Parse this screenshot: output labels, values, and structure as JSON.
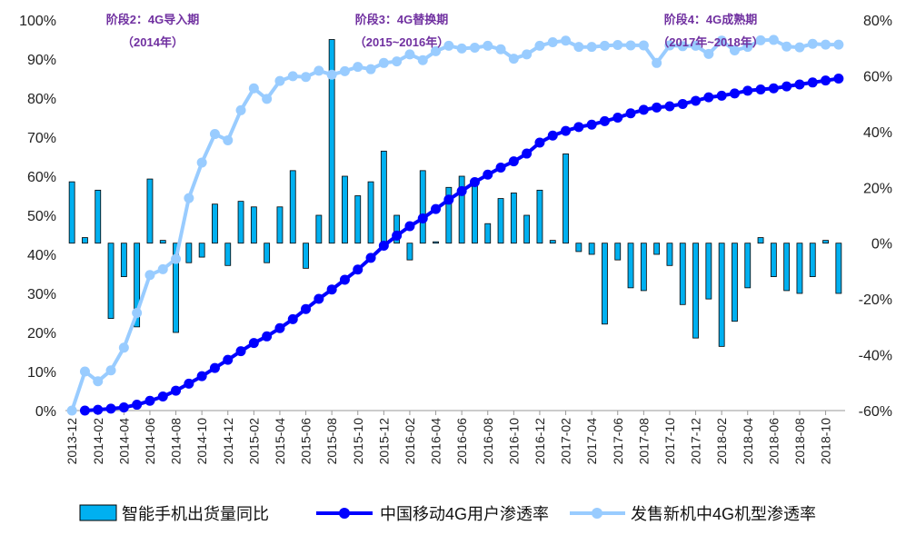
{
  "chart_data": {
    "type": "bar+line",
    "categories": [
      "2013-12",
      "2014-01",
      "2014-02",
      "2014-03",
      "2014-04",
      "2014-05",
      "2014-06",
      "2014-07",
      "2014-08",
      "2014-09",
      "2014-10",
      "2014-11",
      "2014-12",
      "2015-01",
      "2015-02",
      "2015-03",
      "2015-04",
      "2015-05",
      "2015-06",
      "2015-07",
      "2015-08",
      "2015-09",
      "2015-10",
      "2015-11",
      "2015-12",
      "2016-01",
      "2016-02",
      "2016-03",
      "2016-04",
      "2016-05",
      "2016-06",
      "2016-07",
      "2016-08",
      "2016-09",
      "2016-10",
      "2016-11",
      "2016-12",
      "2017-01",
      "2017-02",
      "2017-03",
      "2017-04",
      "2017-05",
      "2017-06",
      "2017-07",
      "2017-08",
      "2017-09",
      "2017-10",
      "2017-11",
      "2017-12",
      "2018-01",
      "2018-02",
      "2018-03",
      "2018-04",
      "2018-05",
      "2018-06",
      "2018-07",
      "2018-08",
      "2018-09",
      "2018-10",
      "2018-11"
    ],
    "x_tick_labels": [
      "2013-12",
      "2014-02",
      "2014-04",
      "2014-06",
      "2014-08",
      "2014-10",
      "2014-12",
      "2015-02",
      "2015-04",
      "2015-06",
      "2015-08",
      "2015-10",
      "2015-12",
      "2016-02",
      "2016-04",
      "2016-06",
      "2016-08",
      "2016-10",
      "2016-12",
      "2017-02",
      "2017-04",
      "2017-06",
      "2017-08",
      "2017-10",
      "2017-12",
      "2018-02",
      "2018-04",
      "2018-06",
      "2018-08",
      "2018-10"
    ],
    "y_left": {
      "ticks": [
        "0%",
        "10%",
        "20%",
        "30%",
        "40%",
        "50%",
        "60%",
        "70%",
        "80%",
        "90%",
        "100%"
      ],
      "ylim": [
        0,
        100
      ]
    },
    "y_right": {
      "ticks": [
        "-60%",
        "-40%",
        "-20%",
        "0%",
        "20%",
        "40%",
        "60%",
        "80%"
      ],
      "ylim": [
        -60,
        80
      ]
    },
    "series": [
      {
        "name": "智能手机出货量同比",
        "kind": "bar",
        "axis": "right",
        "color": "#00B0F0",
        "values": [
          22,
          2,
          19,
          -27,
          -12,
          -30,
          23,
          1,
          -32,
          -7,
          -5,
          14,
          -8,
          15,
          13,
          -7,
          13,
          26,
          -9,
          10,
          73,
          24,
          17,
          22,
          33,
          10,
          -6,
          26,
          0.5,
          20,
          24,
          21,
          7,
          16,
          18,
          10,
          19,
          1,
          32,
          -3,
          -4,
          -29,
          -6,
          -16,
          -17,
          -4,
          -8,
          -22,
          -34,
          -20,
          -37,
          -28,
          -16,
          2,
          -12,
          -17,
          -18,
          -12,
          1,
          -18
        ]
      },
      {
        "name": "中国移动4G用户渗透率",
        "kind": "line",
        "axis": "left",
        "color": "#0000FF",
        "values": [
          null,
          0,
          0.2,
          0.5,
          0.8,
          1.5,
          2.5,
          3.6,
          5.1,
          6.9,
          8.8,
          10.9,
          13.0,
          15.2,
          17.3,
          19.0,
          21.1,
          23.4,
          26.0,
          28.6,
          31.0,
          33.5,
          36.1,
          39.1,
          42.2,
          44.8,
          47.2,
          49.2,
          51.6,
          54.0,
          56.2,
          58.5,
          60.4,
          62.2,
          63.8,
          65.8,
          68.6,
          70.4,
          71.6,
          72.6,
          73.2,
          74.1,
          75.0,
          76.1,
          77.0,
          77.6,
          77.9,
          78.5,
          79.3,
          80.2,
          80.6,
          81.2,
          81.9,
          82.2,
          82.5,
          83.0,
          83.5,
          84.0,
          84.5,
          85.0
        ]
      },
      {
        "name": "发售新机中4G机型渗透率",
        "kind": "line",
        "axis": "left",
        "color": "#99CCFF",
        "values": [
          0,
          10,
          7.5,
          10.3,
          16.1,
          25,
          34.7,
          36.2,
          38.8,
          54.4,
          63.5,
          70.8,
          69.2,
          76.9,
          82.5,
          79.8,
          84.4,
          85.6,
          85.4,
          87.0,
          86.0,
          86.9,
          88.0,
          87.4,
          89.0,
          89.4,
          91.2,
          89.7,
          92.0,
          93.4,
          92.7,
          92.9,
          93.4,
          92.5,
          90.1,
          91.2,
          93.4,
          94.3,
          94.7,
          93.1,
          93.1,
          93.4,
          93.6,
          93.5,
          93.5,
          89.0,
          93.5,
          93.3,
          93.4,
          91.3,
          94.7,
          92.2,
          93.1,
          94.8,
          94.9,
          93.2,
          93.0,
          93.9,
          93.7,
          93.7
        ]
      }
    ],
    "annotations": [
      {
        "line1": "阶段2：4G导入期",
        "line2": "（2014年）"
      },
      {
        "line1": "阶段3：4G替换期",
        "line2": "（2015~2016年）"
      },
      {
        "line1": "阶段4：4G成熟期",
        "line2": "（2017年~2018年）"
      }
    ],
    "legend": {
      "placement": "bottom"
    }
  }
}
